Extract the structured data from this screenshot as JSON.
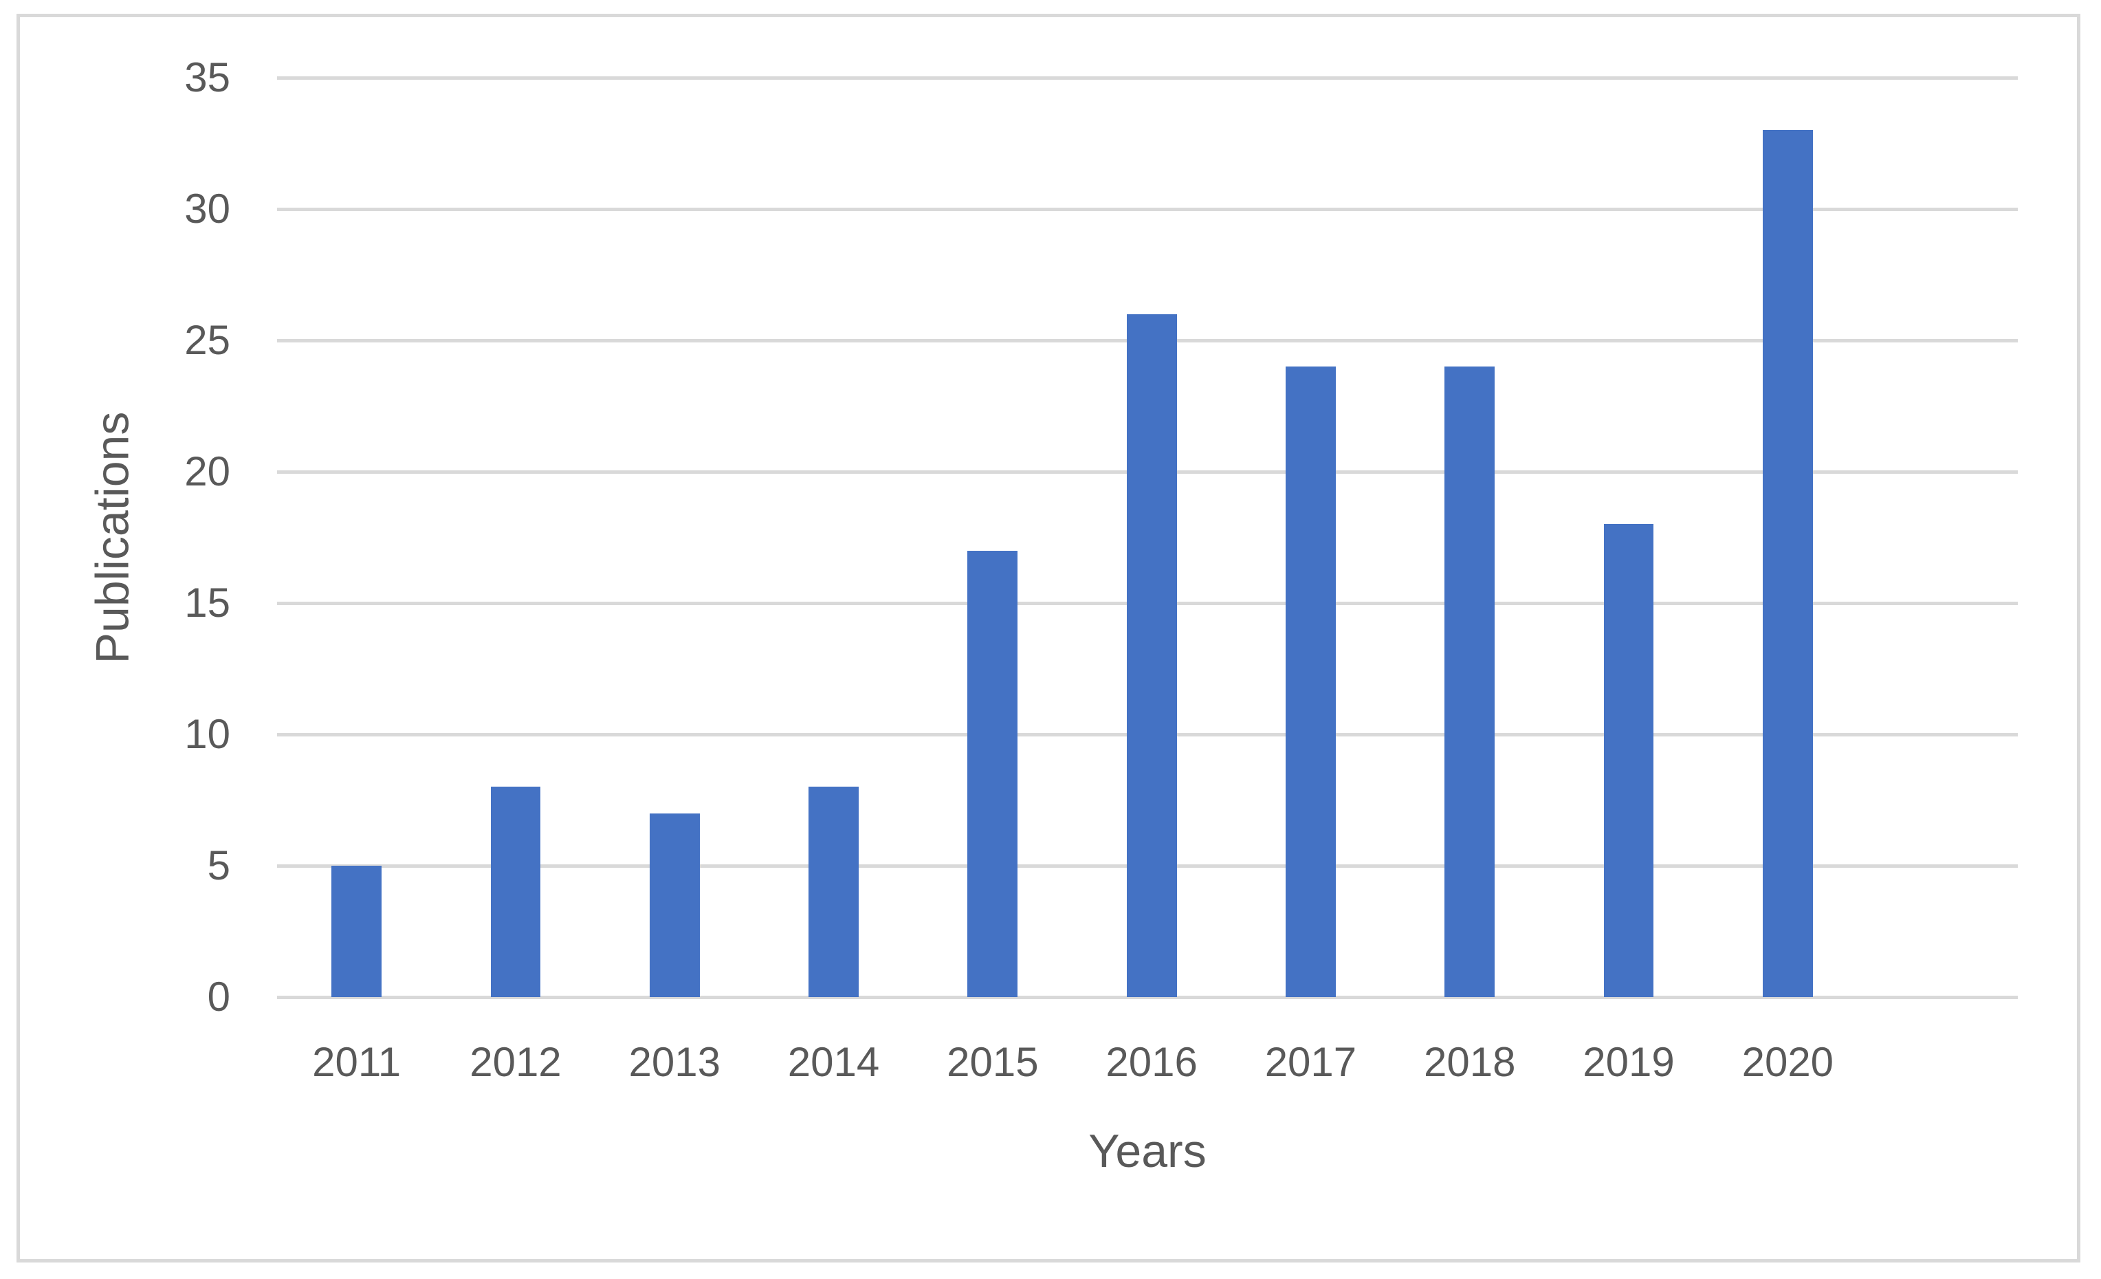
{
  "chart_data": {
    "type": "bar",
    "title": "",
    "categories": [
      "2011",
      "2012",
      "2013",
      "2014",
      "2015",
      "2016",
      "2017",
      "2018",
      "2019",
      "2020"
    ],
    "values": [
      5,
      8,
      7,
      8,
      17,
      26,
      24,
      24,
      18,
      33
    ],
    "xlabel": "Years",
    "ylabel": "Publications",
    "ylim": [
      0,
      35
    ],
    "yticks": [
      0,
      5,
      10,
      15,
      20,
      25,
      30,
      35
    ],
    "grid": "horizontal",
    "legend": "none",
    "bar_color": "#4472c4",
    "gridline_color": "#d9d9d9",
    "text_color": "#595959",
    "frame_color": "#d9d9d9"
  }
}
